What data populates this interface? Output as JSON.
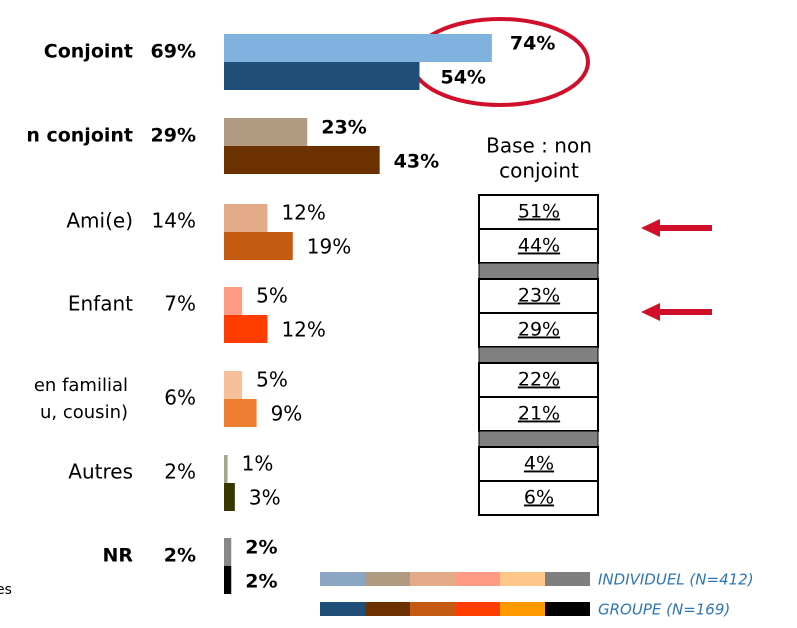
{
  "chart_data": {
    "type": "bar",
    "orientation": "horizontal",
    "categories": [
      "Conjoint",
      "n conjoint",
      "Ami(e)",
      "Enfant",
      [
        "en familial",
        "u, cousin)"
      ],
      "Autres",
      "NR"
    ],
    "bold": [
      true,
      true,
      false,
      false,
      false,
      false,
      true
    ],
    "totals": [
      69,
      29,
      14,
      7,
      6,
      2,
      2
    ],
    "totals_labels": [
      "69%",
      "29%",
      "14%",
      "7%",
      "6%",
      "2%",
      "2%"
    ],
    "series": [
      {
        "name": "INDIVIDUEL (N=412)",
        "values": [
          74,
          23,
          12,
          5,
          5,
          1,
          2
        ],
        "value_labels": [
          "74%",
          "23%",
          "12%",
          "5%",
          "5%",
          "1%",
          "2%"
        ],
        "colors": [
          "#7fb2de",
          "#b09a82",
          "#e4ab88",
          "#ff9a84",
          "#f6c09b",
          "#a3a88c",
          "#888888"
        ],
        "legend_colors": [
          "#8ba6c2",
          "#b09a82",
          "#e4ab88",
          "#ff9a84",
          "#ffc88a",
          "#7f7f7f"
        ]
      },
      {
        "name": "GROUPE (N=169)",
        "values": [
          54,
          43,
          19,
          12,
          9,
          3,
          2
        ],
        "value_labels": [
          "54%",
          "43%",
          "19%",
          "12%",
          "9%",
          "3%",
          "2%"
        ],
        "colors": [
          "#1f4e79",
          "#6b3200",
          "#c55a11",
          "#ff3d00",
          "#ed7d31",
          "#383800",
          "#000000"
        ],
        "legend_colors": [
          "#1f4e79",
          "#6b3200",
          "#c55a11",
          "#ff3d00",
          "#ff9900",
          "#000000"
        ]
      }
    ],
    "xlim": [
      0,
      100
    ],
    "base_table": {
      "title_lines": [
        "Base : non",
        "conjoint"
      ],
      "cells": [
        [
          "51%",
          "44%"
        ],
        [
          "23%",
          "29%"
        ],
        [
          "22%",
          "21%"
        ],
        [
          "4%",
          "6%"
        ]
      ]
    },
    "fragment": "es"
  }
}
